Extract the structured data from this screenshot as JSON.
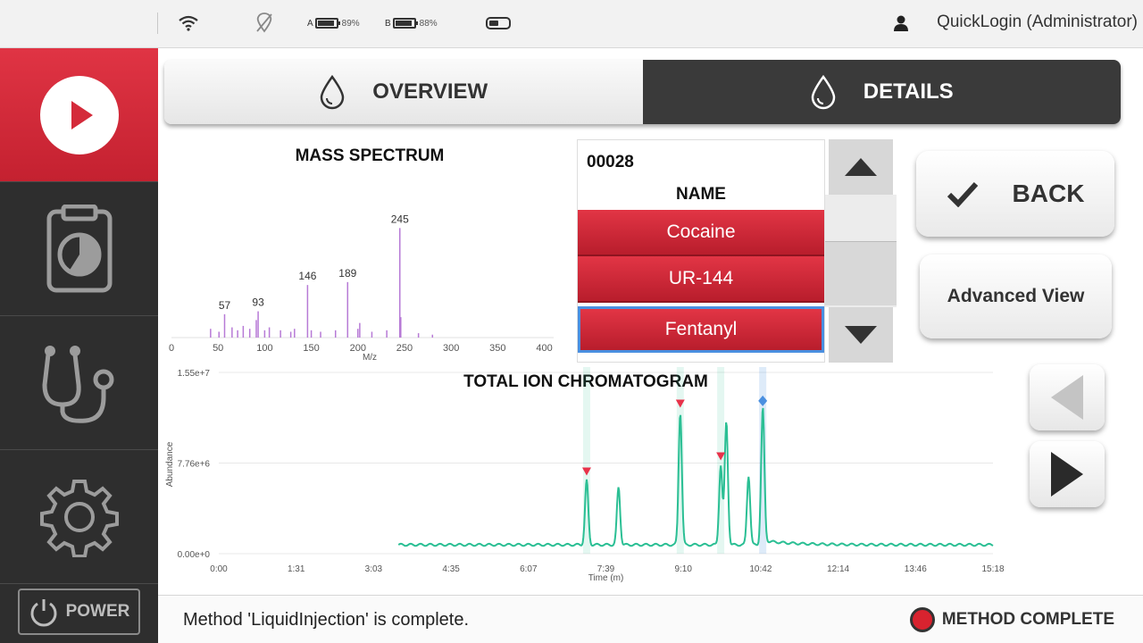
{
  "topbar": {
    "battery_a": {
      "label": "A",
      "percent": "89%",
      "level": 0.89
    },
    "battery_b": {
      "label": "B",
      "percent": "88%",
      "level": 0.88
    },
    "user": "QuickLogin (Administrator)"
  },
  "sidebar": {
    "items": [
      {
        "name": "run",
        "icon": "play-icon",
        "active": true
      },
      {
        "name": "reports",
        "icon": "clipboard-chart-icon",
        "active": false
      },
      {
        "name": "diagnostics",
        "icon": "stethoscope-icon",
        "active": false
      },
      {
        "name": "settings",
        "icon": "gear-icon",
        "active": false
      }
    ],
    "power_label": "POWER"
  },
  "tabs": [
    {
      "label": "OVERVIEW",
      "icon": "droplet-icon",
      "selected": false
    },
    {
      "label": "DETAILS",
      "icon": "droplet-icon",
      "selected": true
    }
  ],
  "compound_list": {
    "id": "00028",
    "header": "NAME",
    "items": [
      "Cocaine",
      "UR-144",
      "Fentanyl"
    ],
    "selected": "Fentanyl"
  },
  "buttons": {
    "back": "BACK",
    "advanced": "Advanced View"
  },
  "status": {
    "message": "Method 'LiquidInjection' is complete.",
    "indicator": "METHOD COMPLETE",
    "indicator_color": "#d8232f"
  },
  "colors": {
    "accent_red": "#d42a3a",
    "spectrum": "#b77ad6",
    "chromatogram": "#2bbf94"
  },
  "chart_data": [
    {
      "type": "bar",
      "title": "MASS SPECTRUM",
      "xlabel": "M/z",
      "ylabel": "",
      "xlim": [
        0,
        410
      ],
      "x_ticks": [
        0,
        50,
        100,
        150,
        200,
        250,
        300,
        350,
        400
      ],
      "peaks": [
        {
          "x": 42,
          "y": 0.06
        },
        {
          "x": 51,
          "y": 0.04
        },
        {
          "x": 57,
          "y": 0.16,
          "label": "57"
        },
        {
          "x": 65,
          "y": 0.07
        },
        {
          "x": 71,
          "y": 0.05
        },
        {
          "x": 77,
          "y": 0.08
        },
        {
          "x": 84,
          "y": 0.06
        },
        {
          "x": 91,
          "y": 0.12
        },
        {
          "x": 93,
          "y": 0.18,
          "label": "93"
        },
        {
          "x": 100,
          "y": 0.05
        },
        {
          "x": 105,
          "y": 0.07
        },
        {
          "x": 117,
          "y": 0.05
        },
        {
          "x": 128,
          "y": 0.04
        },
        {
          "x": 132,
          "y": 0.06
        },
        {
          "x": 146,
          "y": 0.36,
          "label": "146"
        },
        {
          "x": 150,
          "y": 0.05
        },
        {
          "x": 160,
          "y": 0.04
        },
        {
          "x": 176,
          "y": 0.05
        },
        {
          "x": 189,
          "y": 0.38,
          "label": "189"
        },
        {
          "x": 200,
          "y": 0.06
        },
        {
          "x": 202,
          "y": 0.1
        },
        {
          "x": 215,
          "y": 0.04
        },
        {
          "x": 231,
          "y": 0.05
        },
        {
          "x": 245,
          "y": 0.75,
          "label": "245"
        },
        {
          "x": 246,
          "y": 0.14
        },
        {
          "x": 265,
          "y": 0.03
        },
        {
          "x": 280,
          "y": 0.02
        }
      ]
    },
    {
      "type": "line",
      "title": "TOTAL ION CHROMATOGRAM",
      "xlabel": "Time (m)",
      "ylabel": "Abundance",
      "y_ticks": [
        "0.00e+0",
        "7.76e+6",
        "1.55e+7"
      ],
      "ylim": [
        0,
        15500000
      ],
      "x_ticks": [
        "0:00",
        "1:31",
        "3:03",
        "4:35",
        "6:07",
        "7:39",
        "9:10",
        "10:42",
        "12:14",
        "13:46",
        "15:18"
      ],
      "xlim_minutes": [
        0,
        15.3
      ],
      "series": [
        {
          "peaks": [
            {
              "t": 7.27,
              "height": 5500000
            },
            {
              "t": 7.9,
              "height": 4900000
            },
            {
              "t": 9.12,
              "height": 11300000
            },
            {
              "t": 9.92,
              "height": 6800000
            },
            {
              "t": 10.03,
              "height": 10500000
            },
            {
              "t": 10.47,
              "height": 5900000
            },
            {
              "t": 10.75,
              "height": 11500000
            }
          ],
          "baseline": 800000,
          "start_minutes": 3.55,
          "end_minutes": 15.3
        }
      ],
      "markers": [
        {
          "t": 7.27,
          "type": "triangle",
          "color": "#e8324a"
        },
        {
          "t": 9.12,
          "type": "triangle",
          "color": "#e8324a"
        },
        {
          "t": 9.92,
          "type": "triangle",
          "color": "#e8324a"
        },
        {
          "t": 10.75,
          "type": "diamond",
          "color": "#4a8fe0"
        }
      ]
    }
  ]
}
